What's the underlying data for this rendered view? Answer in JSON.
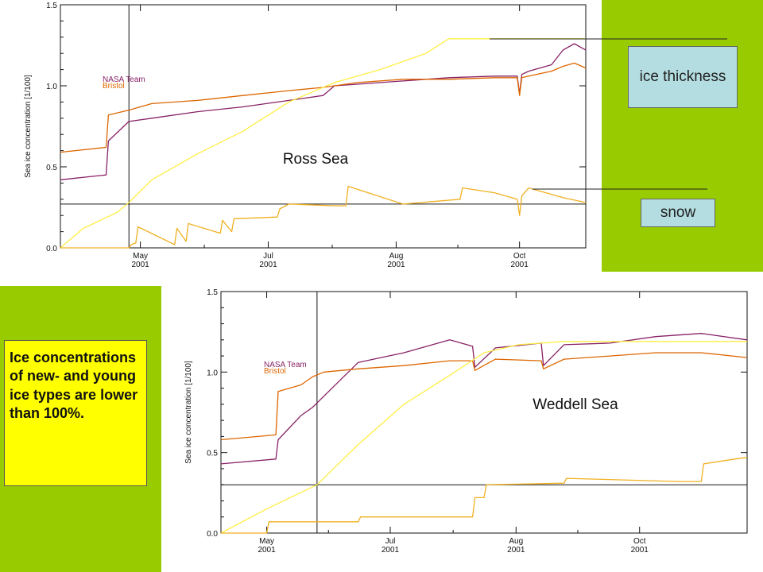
{
  "colors": {
    "accent_green": "#99cc00",
    "callout_blue": "#b3dde0",
    "note_yellow": "#ffff00",
    "nasa_team": "#882266",
    "bristol": "#dd6600",
    "ice_thickness": "#ffee44",
    "snow": "#f0b020"
  },
  "callouts": {
    "ice_thickness": "ice thickness",
    "snow": "snow"
  },
  "note": {
    "text": "Ice concentrations of new- and young ice types are lower than 100%."
  },
  "chart_data": [
    {
      "type": "line",
      "region_label": "Ross Sea",
      "ylabel": "Sea ice concentration [1/100]",
      "ylim": [
        0,
        1.5
      ],
      "yticks": [
        0.0,
        0.5,
        1.0,
        1.5
      ],
      "ytick_labels": [
        "0.0",
        "0.5",
        "1.0",
        "1.5"
      ],
      "xlim": [
        0,
        230
      ],
      "xticks": [
        {
          "x": 35,
          "label": "May",
          "year": "2001"
        },
        {
          "x": 91,
          "label": "Jul",
          "year": "2001"
        },
        {
          "x": 147,
          "label": "Aug",
          "year": "2001"
        },
        {
          "x": 201,
          "label": "Oct",
          "year": "2001"
        }
      ],
      "legend": [
        "NASA Team",
        "Bristol"
      ],
      "crosshair": {
        "x": 30,
        "y": 0.27
      },
      "series": [
        {
          "name": "NASA Team",
          "color_key": "nasa_team",
          "x": [
            0,
            20,
            21,
            30,
            40,
            60,
            80,
            100,
            115,
            120,
            130,
            150,
            170,
            190,
            200,
            201,
            202,
            205,
            215,
            220,
            225,
            230
          ],
          "y": [
            0.42,
            0.45,
            0.66,
            0.78,
            0.8,
            0.84,
            0.87,
            0.91,
            0.94,
            1.0,
            1.01,
            1.03,
            1.05,
            1.06,
            1.06,
            0.95,
            1.07,
            1.09,
            1.13,
            1.22,
            1.26,
            1.22
          ]
        },
        {
          "name": "Bristol",
          "color_key": "bristol",
          "x": [
            0,
            20,
            21,
            30,
            40,
            60,
            80,
            100,
            115,
            120,
            130,
            150,
            170,
            190,
            200,
            201,
            202,
            205,
            215,
            220,
            225,
            230
          ],
          "y": [
            0.59,
            0.62,
            0.82,
            0.85,
            0.89,
            0.91,
            0.94,
            0.97,
            0.99,
            1.0,
            1.02,
            1.04,
            1.04,
            1.05,
            1.05,
            0.94,
            1.05,
            1.06,
            1.09,
            1.12,
            1.14,
            1.11
          ]
        },
        {
          "color_key": "ice_thickness",
          "x": [
            0,
            10,
            25,
            30,
            40,
            60,
            80,
            100,
            120,
            140,
            160,
            170,
            230
          ],
          "y": [
            0.0,
            0.12,
            0.22,
            0.28,
            0.42,
            0.58,
            0.72,
            0.9,
            1.02,
            1.1,
            1.2,
            1.29,
            1.29
          ]
        },
        {
          "color_key": "snow",
          "x": [
            0,
            30,
            31,
            33,
            34,
            50,
            51,
            55,
            56,
            70,
            71,
            75,
            76,
            95,
            96,
            100,
            120,
            125,
            126,
            150,
            175,
            176,
            190,
            200,
            201,
            202,
            205,
            220,
            230
          ],
          "y": [
            0.0,
            0.0,
            0.02,
            0.03,
            0.13,
            0.02,
            0.12,
            0.04,
            0.15,
            0.09,
            0.17,
            0.1,
            0.18,
            0.19,
            0.24,
            0.27,
            0.26,
            0.26,
            0.38,
            0.27,
            0.3,
            0.37,
            0.34,
            0.3,
            0.2,
            0.32,
            0.37,
            0.31,
            0.28
          ]
        }
      ]
    },
    {
      "type": "line",
      "region_label": "Weddell Sea",
      "ylabel": "Sea ice concentration [1/100]",
      "ylim": [
        0,
        1.5
      ],
      "yticks": [
        0.0,
        0.5,
        1.0,
        1.5
      ],
      "ytick_labels": [
        "0.0",
        "0.5",
        "1.0",
        "1.5"
      ],
      "xlim": [
        0,
        230
      ],
      "xticks": [
        {
          "x": 20,
          "label": "May",
          "year": "2001"
        },
        {
          "x": 74,
          "label": "Jul",
          "year": "2001"
        },
        {
          "x": 129,
          "label": "Aug",
          "year": "2001"
        },
        {
          "x": 183,
          "label": "Oct",
          "year": "2001"
        }
      ],
      "legend": [
        "NASA Team",
        "Bristol"
      ],
      "crosshair": {
        "x": 42,
        "y": 0.3
      },
      "series": [
        {
          "name": "NASA Team",
          "color_key": "nasa_team",
          "x": [
            0,
            24,
            25,
            35,
            40,
            45,
            60,
            80,
            100,
            110,
            111,
            120,
            140,
            141,
            150,
            170,
            190,
            210,
            230
          ],
          "y": [
            0.43,
            0.46,
            0.58,
            0.73,
            0.78,
            0.85,
            1.06,
            1.12,
            1.2,
            1.16,
            1.03,
            1.15,
            1.18,
            1.04,
            1.17,
            1.18,
            1.22,
            1.24,
            1.2
          ]
        },
        {
          "name": "Bristol",
          "color_key": "bristol",
          "x": [
            0,
            24,
            25,
            35,
            40,
            45,
            60,
            80,
            100,
            110,
            111,
            120,
            140,
            141,
            150,
            170,
            190,
            210,
            230
          ],
          "y": [
            0.58,
            0.61,
            0.88,
            0.92,
            0.97,
            1.0,
            1.02,
            1.04,
            1.07,
            1.07,
            1.01,
            1.08,
            1.07,
            1.02,
            1.08,
            1.1,
            1.12,
            1.12,
            1.09
          ]
        },
        {
          "color_key": "ice_thickness",
          "x": [
            0,
            20,
            42,
            60,
            80,
            100,
            115,
            130,
            150,
            230
          ],
          "y": [
            0.0,
            0.15,
            0.3,
            0.55,
            0.8,
            0.98,
            1.12,
            1.17,
            1.19,
            1.19
          ]
        },
        {
          "color_key": "snow",
          "x": [
            0,
            20,
            21,
            60,
            61,
            110,
            111,
            115,
            116,
            150,
            151,
            200,
            210,
            211,
            220,
            230
          ],
          "y": [
            0.0,
            0.0,
            0.07,
            0.07,
            0.1,
            0.1,
            0.22,
            0.22,
            0.3,
            0.31,
            0.34,
            0.32,
            0.32,
            0.43,
            0.45,
            0.47
          ]
        }
      ]
    }
  ]
}
